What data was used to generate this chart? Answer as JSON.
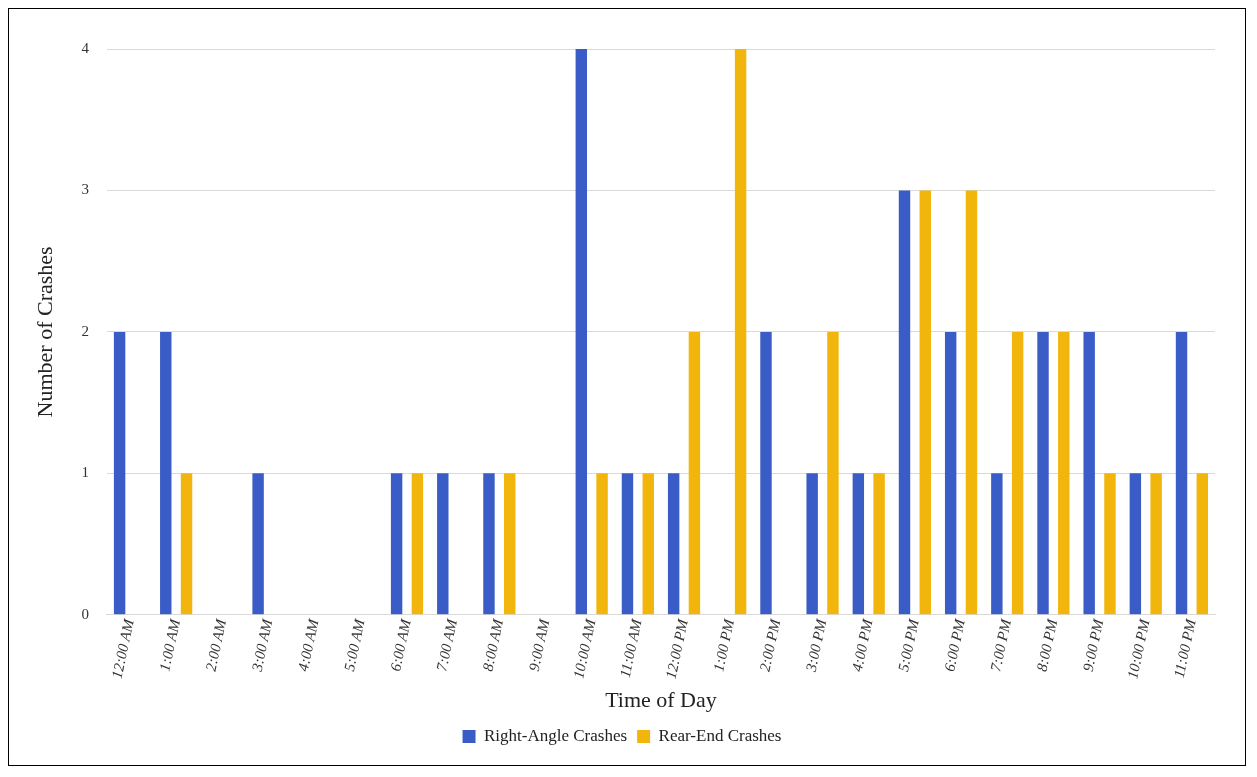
{
  "chart_data": {
    "type": "bar",
    "xlabel": "Time of Day",
    "ylabel": "Number of Crashes",
    "categories": [
      "12:00 AM",
      "1:00 AM",
      "2:00 AM",
      "3:00 AM",
      "4:00 AM",
      "5:00 AM",
      "6:00 AM",
      "7:00 AM",
      "8:00 AM",
      "9:00 AM",
      "10:00 AM",
      "11:00 AM",
      "12:00 PM",
      "1:00 PM",
      "2:00 PM",
      "3:00 PM",
      "4:00 PM",
      "5:00 PM",
      "6:00 PM",
      "7:00 PM",
      "8:00 PM",
      "9:00 PM",
      "10:00 PM",
      "11:00 PM"
    ],
    "series": [
      {
        "name": "Right-Angle Crashes",
        "color": "#3a5cc6",
        "values": [
          2,
          2,
          0,
          1,
          0,
          0,
          1,
          1,
          1,
          0,
          4,
          1,
          1,
          0,
          2,
          1,
          1,
          3,
          2,
          1,
          2,
          2,
          1,
          2
        ]
      },
      {
        "name": "Rear-End Crashes",
        "color": "#f2b50c",
        "values": [
          0,
          1,
          0,
          0,
          0,
          0,
          1,
          0,
          1,
          0,
          1,
          1,
          2,
          4,
          0,
          2,
          1,
          3,
          3,
          2,
          2,
          1,
          1,
          1
        ]
      }
    ],
    "ylim": [
      0,
      4
    ],
    "yticks": [
      0,
      1,
      2,
      3,
      4
    ],
    "grid": "y",
    "legend": "bottom"
  }
}
